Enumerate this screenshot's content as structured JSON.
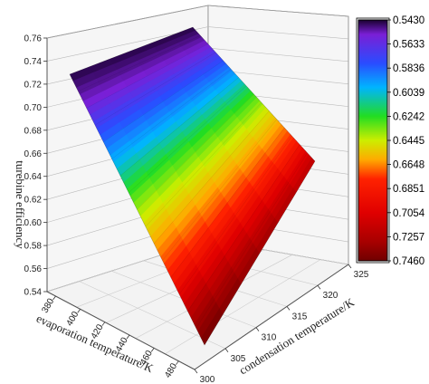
{
  "chart_data": {
    "type": "surface3d",
    "title": "",
    "zlabel": "turebine efficiency",
    "xlabel": "evaporation temperature/K",
    "ylabel": "condensation temperature/K",
    "z_ticks": [
      "0.54",
      "0.56",
      "0.58",
      "0.60",
      "0.62",
      "0.64",
      "0.66",
      "0.68",
      "0.70",
      "0.72",
      "0.74",
      "0.76"
    ],
    "x_ticks": [
      "380",
      "400",
      "420",
      "440",
      "460",
      "480"
    ],
    "y_ticks": [
      "300",
      "305",
      "310",
      "315",
      "320",
      "325"
    ],
    "zlim": [
      0.54,
      0.76
    ],
    "xlim": [
      375,
      485
    ],
    "ylim": [
      300,
      325
    ],
    "colorbar": {
      "labels": [
        "0.5430",
        "0.5633",
        "0.5836",
        "0.6039",
        "0.6242",
        "0.6445",
        "0.6648",
        "0.6851",
        "0.7054",
        "0.7257",
        "0.7460"
      ],
      "colors": [
        "#1a0030",
        "#7a1fd6",
        "#2a4cff",
        "#00b4ff",
        "#22dd22",
        "#ccee00",
        "#ffaa00",
        "#ff2200",
        "#e00000",
        "#a80000",
        "#700000"
      ],
      "range": [
        0.543,
        0.746
      ]
    },
    "surface": {
      "description_points": [
        {
          "x": 385,
          "y": 300,
          "z": 0.743
        },
        {
          "x": 385,
          "y": 325,
          "z": 0.746
        },
        {
          "x": 480,
          "y": 325,
          "z": 0.665
        },
        {
          "x": 480,
          "y": 300,
          "z": 0.543
        }
      ]
    }
  }
}
